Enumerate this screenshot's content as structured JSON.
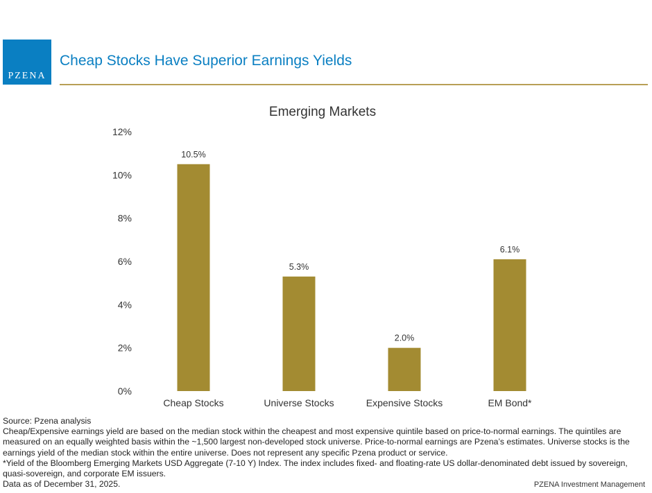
{
  "header": {
    "logo_text": "PZENA",
    "title": "Cheap Stocks Have Superior Earnings Yields"
  },
  "chart_data": {
    "type": "bar",
    "title": "Emerging Markets",
    "categories": [
      "Cheap Stocks",
      "Universe Stocks",
      "Expensive Stocks",
      "EM Bond*"
    ],
    "values": [
      10.5,
      5.3,
      2.0,
      6.1
    ],
    "data_labels": [
      "10.5%",
      "5.3%",
      "2.0%",
      "6.1%"
    ],
    "ylim": [
      0,
      12
    ],
    "yticks": [
      0,
      2,
      4,
      6,
      8,
      10,
      12
    ],
    "ytick_labels": [
      "0%",
      "2%",
      "4%",
      "6%",
      "8%",
      "10%",
      "12%"
    ],
    "xlabel": "",
    "ylabel": "",
    "grid": false,
    "bar_color": "#a38b32"
  },
  "footer": {
    "lines": [
      "Source: Pzena analysis",
      "Cheap/Expensive earnings yield are based on the median stock within the cheapest and most expensive quintile based on price-to-normal earnings. The quintiles are measured on an equally weighted basis within the ~1,500 largest non-developed stock universe. Price-to-normal earnings are Pzena’s estimates. Universe stocks is the earnings yield of the median stock within the entire universe. Does not represent any specific Pzena product or service.",
      "*Yield of the Bloomberg Emerging Markets USD Aggregate (7-10 Y) Index. The index includes fixed- and floating-rate US dollar-denominated debt issued by sovereign, quasi-sovereign, and corporate EM issuers.",
      "Data as of December 31, 2025."
    ],
    "brand": "PZENA Investment Management"
  }
}
